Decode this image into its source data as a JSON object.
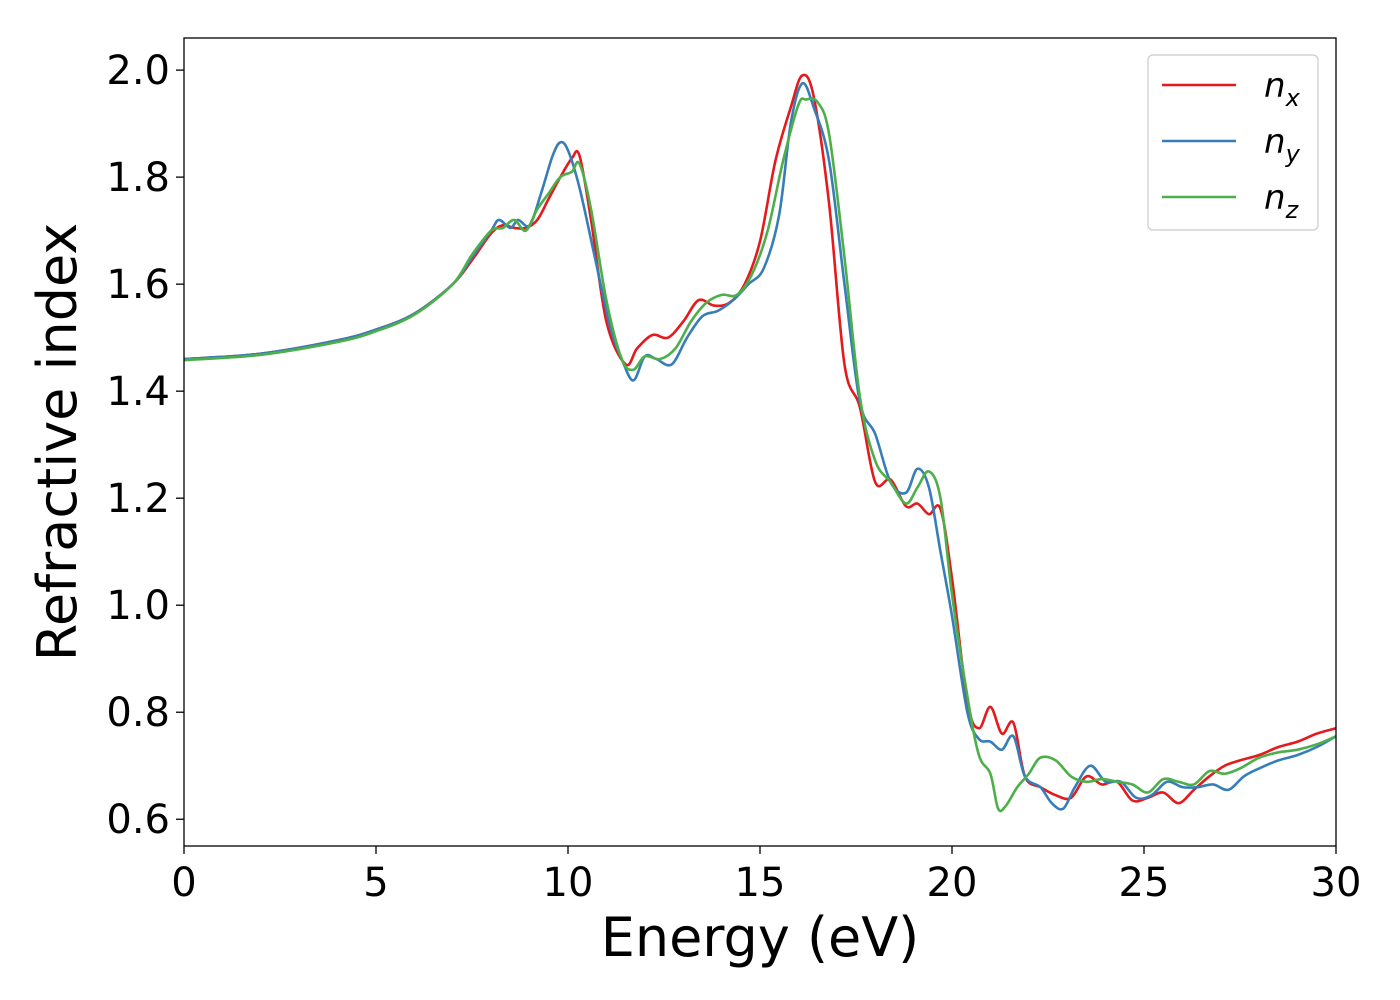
{
  "chart_data": {
    "type": "line",
    "xlabel": "Energy (eV)",
    "ylabel": "Refractive index",
    "xlim": [
      0,
      30
    ],
    "ylim": [
      0.55,
      2.06
    ],
    "xticks": [
      "0",
      "5",
      "10",
      "15",
      "20",
      "25",
      "30"
    ],
    "yticks": [
      "0.6",
      "0.8",
      "1.0",
      "1.2",
      "1.4",
      "1.6",
      "1.8",
      "2.0"
    ],
    "grid": false,
    "legend_position": "top-right",
    "series": [
      {
        "name": "n",
        "subscript": "x",
        "color": "#e41a1c",
        "x": [
          0,
          2,
          4,
          5,
          6,
          7,
          7.5,
          8,
          8.3,
          8.6,
          8.9,
          9.2,
          9.5,
          9.8,
          10.1,
          10.3,
          10.6,
          11.0,
          11.5,
          11.8,
          12.2,
          12.6,
          13.0,
          13.4,
          13.8,
          14.2,
          14.6,
          15.0,
          15.4,
          15.8,
          16.1,
          16.4,
          16.8,
          17.2,
          17.6,
          18.0,
          18.4,
          18.8,
          19.1,
          19.4,
          19.7,
          20.0,
          20.4,
          20.7,
          21.0,
          21.3,
          21.6,
          21.9,
          22.3,
          22.7,
          23.1,
          23.5,
          23.9,
          24.3,
          24.7,
          25.1,
          25.5,
          25.9,
          26.3,
          26.7,
          27.1,
          27.5,
          28.0,
          28.5,
          29.0,
          29.5,
          30.0
        ],
        "y": [
          1.46,
          1.47,
          1.495,
          1.515,
          1.545,
          1.6,
          1.645,
          1.695,
          1.71,
          1.705,
          1.705,
          1.72,
          1.76,
          1.8,
          1.835,
          1.84,
          1.72,
          1.53,
          1.45,
          1.48,
          1.505,
          1.5,
          1.53,
          1.57,
          1.56,
          1.565,
          1.6,
          1.68,
          1.83,
          1.93,
          1.99,
          1.95,
          1.75,
          1.45,
          1.37,
          1.23,
          1.235,
          1.185,
          1.19,
          1.17,
          1.18,
          1.05,
          0.82,
          0.77,
          0.81,
          0.76,
          0.78,
          0.68,
          0.66,
          0.645,
          0.64,
          0.68,
          0.665,
          0.67,
          0.635,
          0.64,
          0.65,
          0.63,
          0.655,
          0.68,
          0.7,
          0.71,
          0.72,
          0.735,
          0.745,
          0.76,
          0.77
        ]
      },
      {
        "name": "n",
        "subscript": "y",
        "color": "#377eb8",
        "x": [
          0,
          2,
          4,
          5,
          6,
          7,
          7.5,
          8,
          8.2,
          8.5,
          8.7,
          9.0,
          9.3,
          9.6,
          9.8,
          10.0,
          10.3,
          10.7,
          11.1,
          11.4,
          11.7,
          12.0,
          12.3,
          12.7,
          13.1,
          13.5,
          13.9,
          14.3,
          14.7,
          15.1,
          15.5,
          15.8,
          16.1,
          16.4,
          16.8,
          17.2,
          17.6,
          18.0,
          18.4,
          18.8,
          19.1,
          19.4,
          19.7,
          20.0,
          20.4,
          20.7,
          21.0,
          21.3,
          21.6,
          21.9,
          22.3,
          22.6,
          22.9,
          23.2,
          23.6,
          24.0,
          24.4,
          24.8,
          25.2,
          25.6,
          26.0,
          26.4,
          26.8,
          27.2,
          27.6,
          28.0,
          28.5,
          29.0,
          29.5,
          30.0
        ],
        "y": [
          1.46,
          1.47,
          1.495,
          1.515,
          1.545,
          1.6,
          1.65,
          1.7,
          1.72,
          1.705,
          1.72,
          1.71,
          1.77,
          1.84,
          1.865,
          1.85,
          1.78,
          1.65,
          1.52,
          1.46,
          1.42,
          1.465,
          1.46,
          1.45,
          1.5,
          1.54,
          1.55,
          1.57,
          1.6,
          1.63,
          1.73,
          1.9,
          1.975,
          1.93,
          1.83,
          1.6,
          1.38,
          1.32,
          1.23,
          1.21,
          1.255,
          1.22,
          1.1,
          0.98,
          0.8,
          0.75,
          0.745,
          0.73,
          0.755,
          0.68,
          0.66,
          0.63,
          0.62,
          0.66,
          0.7,
          0.67,
          0.67,
          0.64,
          0.645,
          0.67,
          0.66,
          0.66,
          0.665,
          0.655,
          0.68,
          0.695,
          0.71,
          0.72,
          0.735,
          0.755
        ]
      },
      {
        "name": "n",
        "subscript": "z",
        "color": "#4daf4a",
        "x": [
          0,
          2,
          4,
          5,
          6,
          7,
          7.5,
          8,
          8.3,
          8.6,
          8.9,
          9.2,
          9.5,
          9.8,
          10.1,
          10.3,
          10.6,
          11.0,
          11.4,
          11.7,
          12.0,
          12.4,
          12.8,
          13.2,
          13.6,
          14.0,
          14.4,
          14.8,
          15.2,
          15.6,
          16.0,
          16.2,
          16.5,
          16.8,
          17.2,
          17.6,
          18.0,
          18.4,
          18.8,
          19.1,
          19.4,
          19.7,
          20.0,
          20.4,
          20.7,
          21.0,
          21.2,
          21.4,
          21.7,
          22.0,
          22.3,
          22.7,
          23.1,
          23.5,
          23.9,
          24.3,
          24.7,
          25.1,
          25.5,
          25.9,
          26.3,
          26.7,
          27.1,
          27.5,
          28.0,
          28.5,
          29.0,
          29.5,
          30.0
        ],
        "y": [
          1.458,
          1.468,
          1.492,
          1.512,
          1.543,
          1.6,
          1.655,
          1.7,
          1.705,
          1.72,
          1.7,
          1.74,
          1.77,
          1.8,
          1.81,
          1.825,
          1.74,
          1.57,
          1.46,
          1.44,
          1.465,
          1.46,
          1.48,
          1.53,
          1.565,
          1.58,
          1.58,
          1.62,
          1.7,
          1.83,
          1.935,
          1.945,
          1.94,
          1.88,
          1.65,
          1.39,
          1.27,
          1.23,
          1.19,
          1.22,
          1.25,
          1.2,
          1.02,
          0.83,
          0.72,
          0.685,
          0.62,
          0.625,
          0.66,
          0.685,
          0.715,
          0.71,
          0.68,
          0.67,
          0.675,
          0.67,
          0.665,
          0.65,
          0.675,
          0.67,
          0.665,
          0.69,
          0.685,
          0.695,
          0.715,
          0.725,
          0.73,
          0.74,
          0.755
        ]
      }
    ]
  }
}
